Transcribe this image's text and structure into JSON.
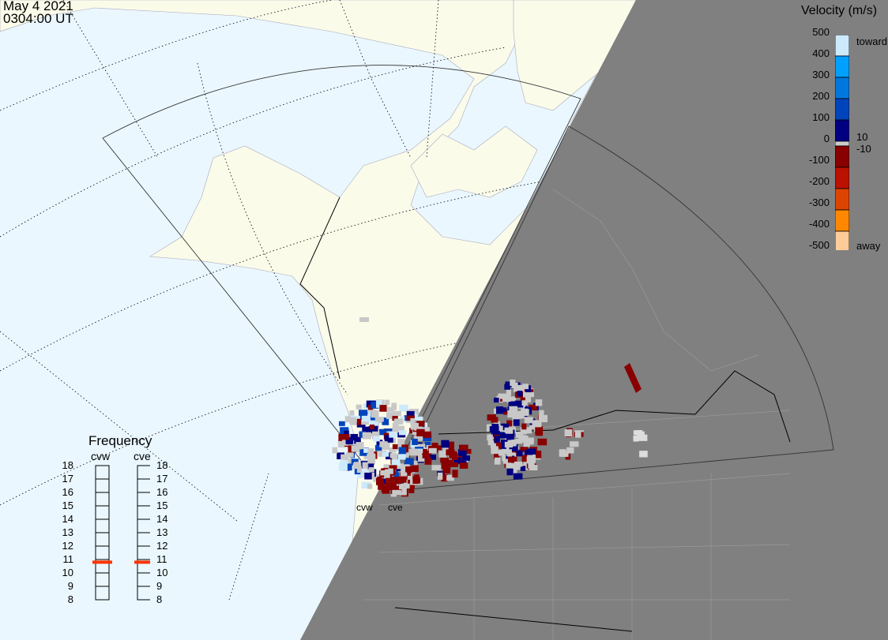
{
  "header": {
    "date": "May 4 2021",
    "time": "0304:00 UT"
  },
  "colorbar": {
    "title": "Velocity (m/s)",
    "ticks": [
      "500",
      "400",
      "300",
      "200",
      "100",
      "0",
      "-100",
      "-200",
      "-300",
      "-400",
      "-500"
    ],
    "inner_labels": [
      "10",
      "-10"
    ],
    "toward_label": "toward",
    "away_label": "away",
    "colors": [
      "#cdeafd",
      "#00a0ff",
      "#0077dd",
      "#0044bb",
      "#000080",
      "#cccccc",
      "#880000",
      "#bb1100",
      "#dd4400",
      "#ff8800",
      "#ffcc99"
    ]
  },
  "frequency": {
    "title": "Frequency",
    "unit_range": [
      "8",
      "9",
      "10",
      "11",
      "12",
      "13",
      "14",
      "15",
      "16",
      "17",
      "18"
    ],
    "radars": [
      {
        "name": "cvw",
        "value_mhz": 10.8
      },
      {
        "name": "cve",
        "value_mhz": 10.8
      }
    ],
    "marker_color": "#ff3300"
  },
  "map": {
    "sites": [
      "cvw",
      "cve"
    ],
    "colors": {
      "ocean": "#eaf7ff",
      "land": "#fbfbea",
      "night": "#808080"
    }
  }
}
